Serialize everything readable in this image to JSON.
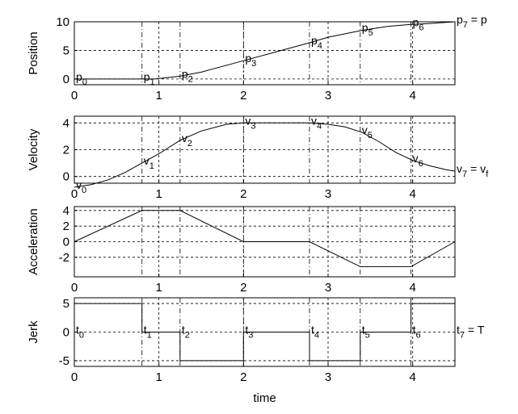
{
  "chart_data": [
    {
      "type": "line",
      "ylabel": "Position",
      "xlim": [
        0,
        4.5
      ],
      "ylim": [
        -1,
        10
      ],
      "xticks": [
        0,
        1,
        2,
        3,
        4
      ],
      "yticks": [
        0,
        5,
        10
      ],
      "grid": true,
      "x": [
        0,
        0.25,
        0.5,
        0.75,
        0.95,
        1.25,
        1.5,
        2.0,
        2.5,
        2.75,
        3.0,
        3.4,
        3.7,
        3.95,
        4.2,
        4.5
      ],
      "y": [
        0,
        0,
        0,
        0,
        0,
        0.5,
        1.2,
        3.2,
        5.2,
        6.2,
        7.3,
        8.5,
        9.2,
        9.5,
        9.7,
        10
      ],
      "knot_markers": [
        0.8,
        1.25,
        2.0,
        2.78,
        3.38,
        3.98,
        4.5
      ],
      "annotations": [
        {
          "base": "p",
          "sub": "0",
          "x": 0.0,
          "y": 0.0
        },
        {
          "base": "p",
          "sub": "1",
          "x": 0.8,
          "y": 0.0
        },
        {
          "base": "p",
          "sub": "2",
          "x": 1.25,
          "y": 0.5
        },
        {
          "base": "p",
          "sub": "3",
          "x": 2.0,
          "y": 3.2
        },
        {
          "base": "p",
          "sub": "4",
          "x": 2.78,
          "y": 6.3
        },
        {
          "base": "p",
          "sub": "5",
          "x": 3.38,
          "y": 8.6
        },
        {
          "base": "p",
          "sub": "6",
          "x": 3.98,
          "y": 9.5
        },
        {
          "base": "p",
          "sub": "7",
          "suffix": " = p",
          "x": 4.5,
          "y": 10
        }
      ]
    },
    {
      "type": "line",
      "ylabel": "Velocity",
      "xlim": [
        0,
        4.5
      ],
      "ylim": [
        -0.5,
        4.5
      ],
      "xticks": [
        0,
        1,
        2,
        3,
        4
      ],
      "yticks": [
        0,
        2,
        4
      ],
      "grid": true,
      "x": [
        0,
        0.2,
        0.4,
        0.6,
        0.8,
        1.0,
        1.25,
        1.5,
        1.8,
        2.0,
        2.5,
        2.78,
        3.0,
        3.2,
        3.4,
        3.6,
        3.8,
        4.0,
        4.2,
        4.4,
        4.5
      ],
      "y": [
        -0.8,
        -0.6,
        -0.25,
        0.3,
        1.0,
        1.7,
        2.7,
        3.4,
        3.9,
        4.0,
        4.0,
        4.0,
        3.9,
        3.7,
        3.3,
        2.6,
        1.8,
        1.2,
        0.8,
        0.5,
        0.4
      ],
      "knot_markers": [
        0.8,
        1.25,
        2.0,
        2.78,
        3.38,
        3.98,
        4.5
      ],
      "annotations": [
        {
          "base": "v",
          "sub": "0",
          "x": 0.0,
          "y": -0.8
        },
        {
          "base": "v",
          "sub": "1",
          "x": 0.8,
          "y": 1.0
        },
        {
          "base": "v",
          "sub": "2",
          "x": 1.25,
          "y": 2.7
        },
        {
          "base": "v",
          "sub": "3",
          "x": 2.0,
          "y": 4.0
        },
        {
          "base": "v",
          "sub": "4",
          "x": 2.78,
          "y": 4.0
        },
        {
          "base": "v",
          "sub": "5",
          "x": 3.38,
          "y": 3.3
        },
        {
          "base": "v",
          "sub": "6",
          "x": 3.98,
          "y": 1.2
        },
        {
          "base": "v",
          "sub": "7",
          "suffix": " = v",
          "tail_sub": "f",
          "x": 4.5,
          "y": 0.4
        }
      ]
    },
    {
      "type": "line",
      "ylabel": "Acceleration",
      "xlim": [
        0,
        4.5
      ],
      "ylim": [
        -4.5,
        4.5
      ],
      "xticks": [
        0,
        1,
        2,
        3,
        4
      ],
      "yticks": [
        4,
        2,
        0,
        -2
      ],
      "grid": true,
      "x": [
        0,
        0.8,
        1.25,
        2.0,
        2.78,
        3.38,
        3.98,
        4.5
      ],
      "y": [
        0,
        4,
        4,
        0,
        0,
        -3.2,
        -3.2,
        0
      ],
      "knot_markers": [
        0.8,
        1.25,
        2.0,
        2.78,
        3.38,
        3.98,
        4.5
      ],
      "annotations": []
    },
    {
      "type": "line",
      "ylabel": "Jerk",
      "xlabel": "time",
      "xlim": [
        0,
        4.5
      ],
      "ylim": [
        -6,
        6
      ],
      "xticks": [
        0,
        1,
        2,
        3,
        4
      ],
      "yticks": [
        5,
        0,
        -5
      ],
      "grid": true,
      "x": [
        0,
        0.8,
        0.8,
        1.25,
        1.25,
        2.0,
        2.0,
        2.78,
        2.78,
        3.38,
        3.38,
        3.98,
        3.98,
        4.5,
        4.5
      ],
      "y": [
        5,
        5,
        0,
        0,
        -5,
        -5,
        0,
        0,
        -5,
        -5,
        0,
        0,
        5,
        5,
        0
      ],
      "knot_markers": [
        0.8,
        1.25,
        2.0,
        2.78,
        3.38,
        3.98,
        4.5
      ],
      "annotations": [
        {
          "base": "t",
          "sub": "0",
          "x": 0.0,
          "y": 0
        },
        {
          "base": "t",
          "sub": "1",
          "x": 0.8,
          "y": 0
        },
        {
          "base": "t",
          "sub": "2",
          "x": 1.25,
          "y": 0
        },
        {
          "base": "t",
          "sub": "3",
          "x": 2.0,
          "y": 0
        },
        {
          "base": "t",
          "sub": "4",
          "x": 2.78,
          "y": 0
        },
        {
          "base": "t",
          "sub": "5",
          "x": 3.38,
          "y": 0
        },
        {
          "base": "t",
          "sub": "6",
          "x": 3.98,
          "y": 0
        },
        {
          "base": "t",
          "sub": "7",
          "suffix": " = T",
          "x": 4.5,
          "y": 0
        }
      ]
    }
  ]
}
